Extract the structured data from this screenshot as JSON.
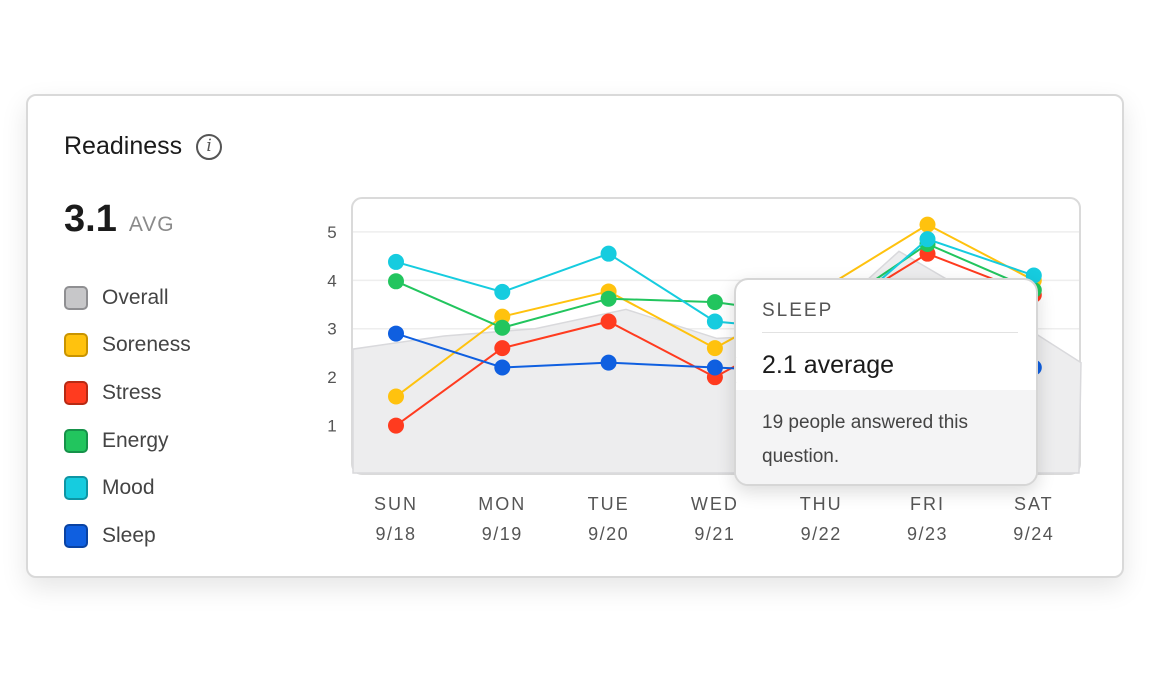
{
  "card": {
    "title": "Readiness",
    "info_icon": "info-icon",
    "avg_value": "3.1",
    "avg_label": "AVG"
  },
  "legend": [
    {
      "label": "Overall",
      "color": "#c7c7c9",
      "border": "#8f8f92"
    },
    {
      "label": "Soreness",
      "color": "#ffc20e",
      "border": "#c99400"
    },
    {
      "label": "Stress",
      "color": "#ff3b1f",
      "border": "#b82a14"
    },
    {
      "label": "Energy",
      "color": "#22c55e",
      "border": "#16924a"
    },
    {
      "label": "Mood",
      "color": "#16ccdf",
      "border": "#0e95a4"
    },
    {
      "label": "Sleep",
      "color": "#0f5fe0",
      "border": "#0a43a3"
    }
  ],
  "tooltip": {
    "series": "SLEEP",
    "average": "2.1 average",
    "note": "19 people answered this question."
  },
  "chart_data": {
    "type": "line",
    "categories": [
      "SUN",
      "MON",
      "TUE",
      "WED",
      "THU",
      "FRI",
      "SAT"
    ],
    "dates": [
      "9/18",
      "9/19",
      "9/20",
      "9/21",
      "9/22",
      "9/23",
      "9/24"
    ],
    "yticks": [
      1,
      2,
      3,
      4,
      5
    ],
    "ylim": [
      0,
      5.7
    ],
    "grid": true,
    "overall_area": [
      2.58,
      2.85,
      3.0,
      3.4,
      2.8,
      2.9,
      4.6,
      3.5,
      2.3
    ],
    "series": [
      {
        "name": "Soreness",
        "color": "#ffc20e",
        "values": [
          1.6,
          3.25,
          3.77,
          2.6,
          3.8,
          5.15,
          4.0
        ]
      },
      {
        "name": "Stress",
        "color": "#ff3b1f",
        "values": [
          1.0,
          2.6,
          3.15,
          2.0,
          3.2,
          4.55,
          3.7
        ]
      },
      {
        "name": "Energy",
        "color": "#22c55e",
        "values": [
          3.98,
          3.02,
          3.62,
          3.55,
          3.25,
          4.75,
          3.8
        ]
      },
      {
        "name": "Mood",
        "color": "#16ccdf",
        "values": [
          4.38,
          3.76,
          4.55,
          3.15,
          2.95,
          4.85,
          4.1
        ]
      },
      {
        "name": "Sleep",
        "color": "#0f5fe0",
        "values": [
          2.9,
          2.2,
          2.3,
          2.2,
          2.1,
          2.3,
          2.2
        ]
      }
    ]
  }
}
